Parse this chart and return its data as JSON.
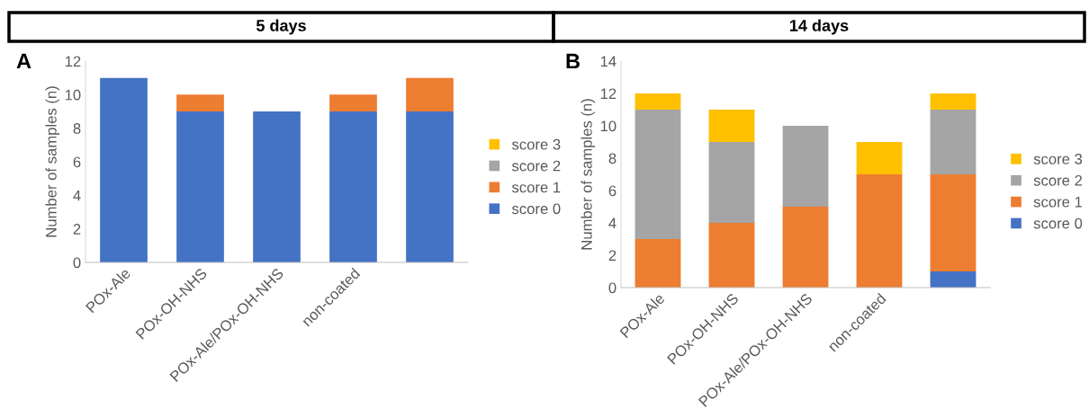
{
  "chart_data": [
    {
      "type": "bar",
      "title": "5 days",
      "ylabel": "Number of samples (n)",
      "annotations": [
        "A"
      ],
      "stacked": true,
      "legend": "right",
      "grid": false,
      "categories": [
        "POx-Ale",
        "POx-OH-NHS",
        "POx-Ale/POx-OH-NHS",
        "non-coated",
        null
      ],
      "ylim": [
        0,
        12
      ],
      "yticks": [
        0,
        2,
        4,
        6,
        8,
        10,
        12
      ],
      "series": [
        {
          "name": "score 0",
          "color": "#4472c4",
          "values": [
            11,
            9,
            9,
            9,
            9
          ]
        },
        {
          "name": "score 1",
          "color": "#ed7d31",
          "values": [
            0,
            1,
            0,
            1,
            2
          ]
        },
        {
          "name": "score 2",
          "color": "#a5a5a5",
          "values": [
            0,
            0,
            0,
            0,
            0
          ]
        },
        {
          "name": "score 3",
          "color": "#ffc000",
          "values": [
            0,
            0,
            0,
            0,
            0
          ]
        }
      ]
    },
    {
      "type": "bar",
      "title": "14 days",
      "ylabel": "Number of samples (n)",
      "annotations": [
        "B"
      ],
      "stacked": true,
      "legend": "right",
      "grid": false,
      "categories": [
        "POx-Ale",
        "POx-OH-NHS",
        "POx-Ale/POx-OH-NHS",
        "non-coated",
        null
      ],
      "ylim": [
        0,
        14
      ],
      "yticks": [
        0,
        2,
        4,
        6,
        8,
        10,
        12,
        14
      ],
      "series": [
        {
          "name": "score 0",
          "color": "#4472c4",
          "values": [
            0,
            0,
            0,
            0,
            1
          ]
        },
        {
          "name": "score 1",
          "color": "#ed7d31",
          "values": [
            3,
            4,
            5,
            7,
            6
          ]
        },
        {
          "name": "score 2",
          "color": "#a5a5a5",
          "values": [
            8,
            5,
            5,
            0,
            4
          ]
        },
        {
          "name": "score 3",
          "color": "#ffc000",
          "values": [
            1,
            2,
            0,
            2,
            1
          ]
        }
      ]
    }
  ]
}
